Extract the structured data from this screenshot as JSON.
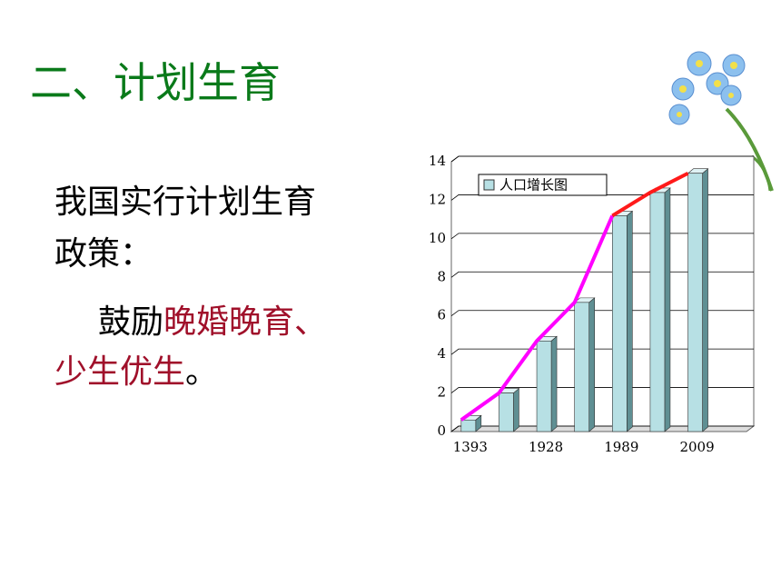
{
  "title": "二、计划生育",
  "body": {
    "line1": "我国实行计划生育",
    "line2": "政策：",
    "line3a": "鼓励",
    "line3b": "晚婚晚育、",
    "line4a": "少生优生",
    "line4b": "。"
  },
  "chart_data": {
    "type": "bar",
    "categories": [
      "1393",
      null,
      "1928",
      null,
      "1989",
      null,
      "2009",
      null
    ],
    "series": [
      {
        "name": "人口增长图",
        "color": "#b7e0e4",
        "values": [
          0.6,
          2,
          4.7,
          6.7,
          11.2,
          12.4,
          13.4,
          null
        ]
      }
    ],
    "ylim": [
      0,
      14
    ],
    "yticks": [
      0,
      2,
      4,
      6,
      8,
      10,
      12,
      14
    ],
    "grid": true,
    "legend": "top-left",
    "trend_colors": [
      "#ff00ff",
      "#ff1a1a"
    ]
  }
}
